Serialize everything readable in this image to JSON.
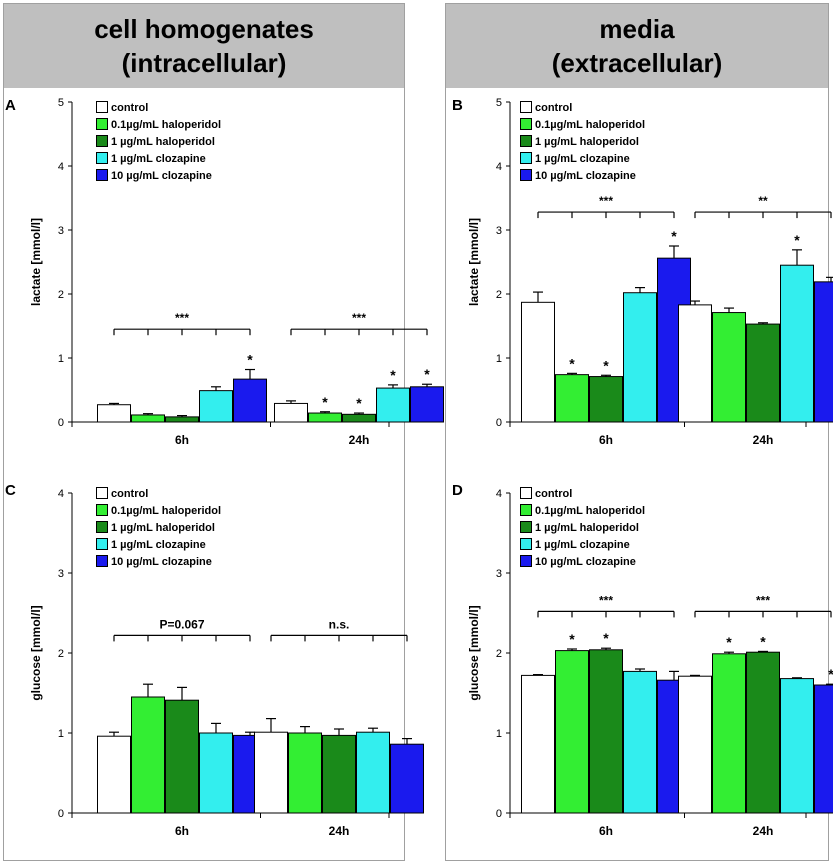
{
  "headers": {
    "left": {
      "line1": "cell homogenates",
      "line2": "(intracellular)"
    },
    "right": {
      "line1": "media",
      "line2": "(extracellular)"
    }
  },
  "legend": {
    "entries": [
      {
        "label": "control",
        "color": "#ffffff"
      },
      {
        "label": "0.1µg/mL haloperidol",
        "color": "#33ee33"
      },
      {
        "label": "1   µg/mL haloperidol",
        "color": "#1a8a1a"
      },
      {
        "label": "1   µg/mL clozapine",
        "color": "#33eeee"
      },
      {
        "label": "10 µg/mL clozapine",
        "color": "#1a1aee"
      }
    ]
  },
  "chart_data": [
    {
      "panel": "A",
      "type": "bar",
      "ylabel": "lactate  [mmol/l]",
      "ylim": [
        0,
        5
      ],
      "yticks": [
        "0",
        "1",
        "2",
        "3",
        "4",
        "5"
      ],
      "categories": [
        "6h",
        "24h"
      ],
      "series": [
        {
          "name": "control",
          "values": [
            0.27,
            0.29
          ],
          "errors": [
            0.02,
            0.04
          ]
        },
        {
          "name": "0.1µg/mL haloperidol",
          "values": [
            0.11,
            0.14
          ],
          "errors": [
            0.02,
            0.02
          ]
        },
        {
          "name": "1   µg/mL haloperidol",
          "values": [
            0.08,
            0.12
          ],
          "errors": [
            0.02,
            0.02
          ]
        },
        {
          "name": "1   µg/mL clozapine",
          "values": [
            0.49,
            0.53
          ],
          "errors": [
            0.06,
            0.05
          ]
        },
        {
          "name": "10 µg/mL clozapine",
          "values": [
            0.67,
            0.55
          ],
          "errors": [
            0.15,
            0.04
          ]
        }
      ],
      "stars": [
        [
          "",
          "",
          "",
          "",
          "*"
        ],
        [
          "",
          "*",
          "*",
          "*",
          "*"
        ]
      ],
      "brackets": [
        {
          "text": "***",
          "y": 1.45
        },
        {
          "text": "***",
          "y": 1.45
        }
      ]
    },
    {
      "panel": "B",
      "type": "bar",
      "ylabel": "lactate  [mmol/l]",
      "ylim": [
        0,
        5
      ],
      "yticks": [
        "0",
        "1",
        "2",
        "3",
        "4",
        "5"
      ],
      "categories": [
        "6h",
        "24h"
      ],
      "series": [
        {
          "name": "control",
          "values": [
            1.87,
            1.83
          ],
          "errors": [
            0.16,
            0.06
          ]
        },
        {
          "name": "0.1µg/mL haloperidol",
          "values": [
            0.74,
            1.71
          ],
          "errors": [
            0.02,
            0.07
          ]
        },
        {
          "name": "1   µg/mL haloperidol",
          "values": [
            0.71,
            1.53
          ],
          "errors": [
            0.02,
            0.02
          ]
        },
        {
          "name": "1   µg/mL clozapine",
          "values": [
            2.02,
            2.45
          ],
          "errors": [
            0.08,
            0.24
          ]
        },
        {
          "name": "10 µg/mL clozapine",
          "values": [
            2.56,
            2.19
          ],
          "errors": [
            0.19,
            0.07
          ]
        }
      ],
      "stars": [
        [
          "",
          "*",
          "*",
          "",
          "*"
        ],
        [
          "",
          "",
          "",
          "*",
          ""
        ]
      ],
      "brackets": [
        {
          "text": "***",
          "y": 3.28
        },
        {
          "text": "**",
          "y": 3.28
        }
      ]
    },
    {
      "panel": "C",
      "type": "bar",
      "ylabel": "glucose  [mmol/l]",
      "ylim": [
        0,
        4
      ],
      "yticks": [
        "0",
        "1",
        "2",
        "3",
        "4"
      ],
      "categories": [
        "6h",
        "24h"
      ],
      "series": [
        {
          "name": "control",
          "values": [
            0.96,
            1.01
          ],
          "errors": [
            0.05,
            0.17
          ]
        },
        {
          "name": "0.1µg/mL haloperidol",
          "values": [
            1.45,
            1.0
          ],
          "errors": [
            0.16,
            0.08
          ]
        },
        {
          "name": "1   µg/mL haloperidol",
          "values": [
            1.41,
            0.97
          ],
          "errors": [
            0.16,
            0.08
          ]
        },
        {
          "name": "1   µg/mL clozapine",
          "values": [
            1.0,
            1.01
          ],
          "errors": [
            0.12,
            0.05
          ]
        },
        {
          "name": "10 µg/mL clozapine",
          "values": [
            0.97,
            0.86
          ],
          "errors": [
            0.04,
            0.07
          ]
        }
      ],
      "stars": [
        [
          "",
          "",
          "",
          "",
          ""
        ],
        [
          "",
          "",
          "",
          "",
          ""
        ]
      ],
      "brackets": [
        {
          "text": "P=0.067",
          "y": 2.22
        },
        {
          "text": "n.s.",
          "y": 2.22
        }
      ]
    },
    {
      "panel": "D",
      "type": "bar",
      "ylabel": "glucose  [mmol/l]",
      "ylim": [
        0,
        4
      ],
      "yticks": [
        "0",
        "1",
        "2",
        "3",
        "4"
      ],
      "categories": [
        "6h",
        "24h"
      ],
      "series": [
        {
          "name": "control",
          "values": [
            1.72,
            1.71
          ],
          "errors": [
            0.01,
            0.01
          ]
        },
        {
          "name": "0.1µg/mL haloperidol",
          "values": [
            2.03,
            1.99
          ],
          "errors": [
            0.02,
            0.02
          ]
        },
        {
          "name": "1   µg/mL haloperidol",
          "values": [
            2.04,
            2.01
          ],
          "errors": [
            0.02,
            0.01
          ]
        },
        {
          "name": "1   µg/mL clozapine",
          "values": [
            1.77,
            1.68
          ],
          "errors": [
            0.03,
            0.01
          ]
        },
        {
          "name": "10 µg/mL clozapine",
          "values": [
            1.66,
            1.6
          ],
          "errors": [
            0.11,
            0.01
          ]
        }
      ],
      "stars": [
        [
          "",
          "*",
          "*",
          "",
          ""
        ],
        [
          "",
          "*",
          "*",
          "",
          "*"
        ]
      ],
      "brackets": [
        {
          "text": "***",
          "y": 2.52
        },
        {
          "text": "***",
          "y": 2.52
        }
      ]
    }
  ]
}
